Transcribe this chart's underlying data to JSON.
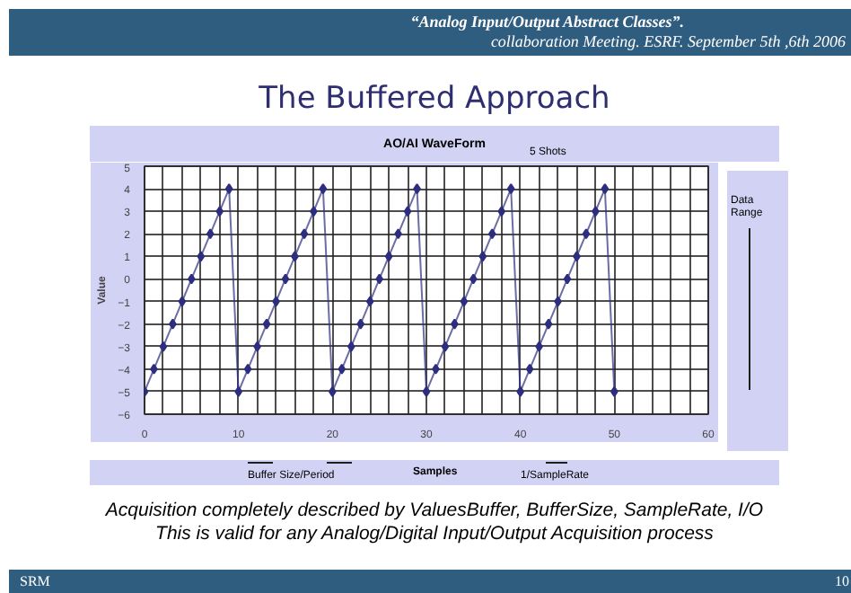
{
  "chart_data": {
    "type": "line",
    "title": "The Buffered Approach",
    "subtitle": "AO/AI WaveForm",
    "xlabel": "Samples",
    "ylabel": "Value",
    "x": [
      0,
      1,
      2,
      3,
      4,
      5,
      6,
      7,
      8,
      9,
      10,
      11,
      12,
      13,
      14,
      15,
      16,
      17,
      18,
      19,
      20,
      21,
      22,
      23,
      24,
      25,
      26,
      27,
      28,
      29,
      30,
      31,
      32,
      33,
      34,
      35,
      36,
      37,
      38,
      39,
      40,
      41,
      42,
      43,
      44,
      45,
      46,
      47,
      48,
      49,
      50
    ],
    "series": [
      {
        "color": "#2e2e80",
        "values": [
          -5,
          -4,
          -3,
          -2,
          -1,
          0,
          1,
          2,
          3,
          4,
          -5,
          -4,
          -3,
          -2,
          -1,
          0,
          1,
          2,
          3,
          4,
          -5,
          -4,
          -3,
          -2,
          -1,
          0,
          1,
          2,
          3,
          4,
          -5,
          -4,
          -3,
          -2,
          -1,
          0,
          1,
          2,
          3,
          4,
          -5,
          -4,
          -3,
          -2,
          -1,
          0,
          1,
          2,
          3,
          4,
          -5
        ]
      }
    ],
    "xlim": [
      0,
      60
    ],
    "ylim": [
      -6,
      5
    ],
    "xticks": [
      0,
      10,
      20,
      30,
      40,
      50,
      60
    ],
    "yticks": [
      -6,
      -5,
      -4,
      -3,
      -2,
      -1,
      0,
      1,
      2,
      3,
      4,
      5
    ],
    "grid": true,
    "marker": "diamond",
    "line_style": "solid",
    "annotations": [
      "“Analog Input/Output Abstract Classes”.",
      "collaboration Meeting. ESRF. September 5th ,6th 2006",
      "5 Shots",
      "Data Range",
      "Buffer Size/Period",
      "1/SampleRate",
      "Acquisition completely described by ValuesBuffer, BufferSize, SampleRate, I/O",
      "This is valid for any Analog/Digital Input/Output Acquisition process",
      "SRM",
      "10"
    ]
  }
}
